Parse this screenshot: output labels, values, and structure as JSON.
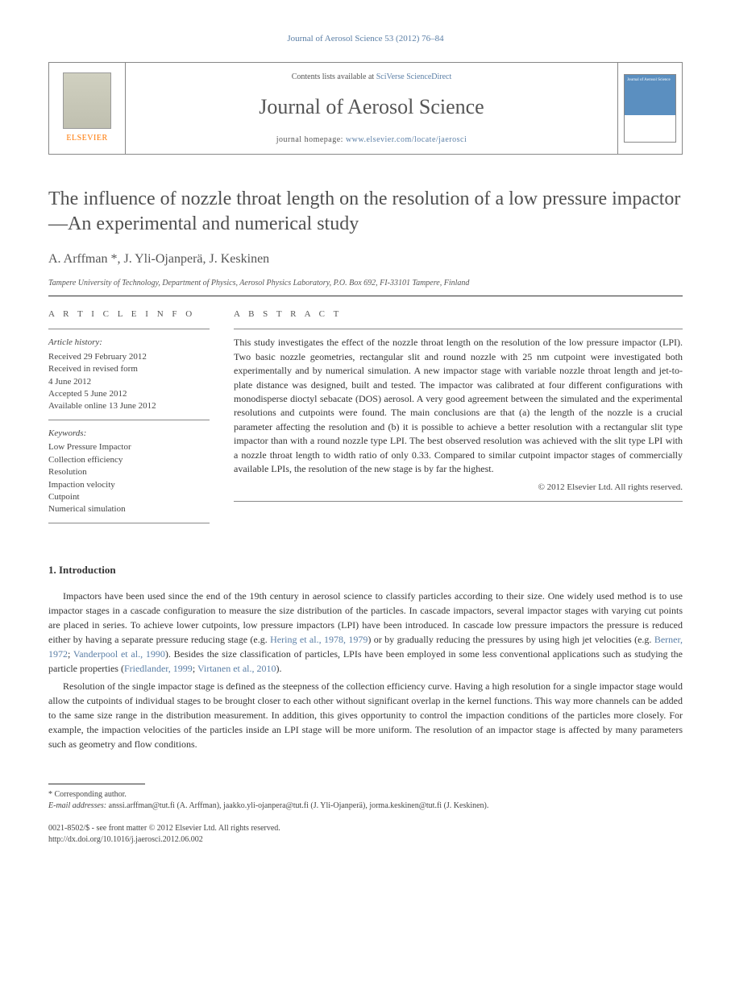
{
  "journal_ref": "Journal of Aerosol Science 53 (2012) 76–84",
  "header": {
    "publisher": "ELSEVIER",
    "contents_prefix": "Contents lists available at ",
    "contents_link": "SciVerse ScienceDirect",
    "journal_name": "Journal of Aerosol Science",
    "homepage_prefix": "journal homepage: ",
    "homepage_url": "www.elsevier.com/locate/jaerosci",
    "cover_text": "Journal of Aerosol Science"
  },
  "article": {
    "title": "The influence of nozzle throat length on the resolution of a low pressure impactor—An experimental and numerical study",
    "authors": "A. Arffman *, J. Yli-Ojanperä, J. Keskinen",
    "affiliation": "Tampere University of Technology, Department of Physics, Aerosol Physics Laboratory, P.O. Box 692, FI-33101 Tampere, Finland"
  },
  "info": {
    "section_label": "A R T I C L E   I N F O",
    "history_label": "Article history:",
    "history": [
      "Received 29 February 2012",
      "Received in revised form",
      "4 June 2012",
      "Accepted 5 June 2012",
      "Available online 13 June 2012"
    ],
    "keywords_label": "Keywords:",
    "keywords": [
      "Low Pressure Impactor",
      "Collection efficiency",
      "Resolution",
      "Impaction velocity",
      "Cutpoint",
      "Numerical simulation"
    ]
  },
  "abstract": {
    "section_label": "A B S T R A C T",
    "text": "This study investigates the effect of the nozzle throat length on the resolution of the low pressure impactor (LPI). Two basic nozzle geometries, rectangular slit and round nozzle with 25 nm cutpoint were investigated both experimentally and by numerical simulation. A new impactor stage with variable nozzle throat length and jet-to-plate distance was designed, built and tested. The impactor was calibrated at four different configurations with monodisperse dioctyl sebacate (DOS) aerosol. A very good agreement between the simulated and the experimental resolutions and cutpoints were found. The main conclusions are that (a) the length of the nozzle is a crucial parameter affecting the resolution and (b) it is possible to achieve a better resolution with a rectangular slit type impactor than with a round nozzle type LPI. The best observed resolution was achieved with the slit type LPI with a nozzle throat length to width ratio of only 0.33. Compared to similar cutpoint impactor stages of commercially available LPIs, the resolution of the new stage is by far the highest.",
    "copyright": "© 2012 Elsevier Ltd. All rights reserved."
  },
  "introduction": {
    "heading": "1. Introduction",
    "para1_pre": "Impactors have been used since the end of the 19th century in aerosol science to classify particles according to their size. One widely used method is to use impactor stages in a cascade configuration to measure the size distribution of the particles. In cascade impactors, several impactor stages with varying cut points are placed in series. To achieve lower cutpoints, low pressure impactors (LPI) have been introduced. In cascade low pressure impactors the pressure is reduced either by having a separate pressure reducing stage (e.g. ",
    "ref1": "Hering et al., 1978, 1979",
    "para1_mid1": ") or by gradually reducing the pressures by using high jet velocities (e.g. ",
    "ref2": "Berner, 1972",
    "para1_sep": "; ",
    "ref3": "Vanderpool et al., 1990",
    "para1_mid2": "). Besides the size classification of particles, LPIs have been employed in some less conventional applications such as studying the particle properties (",
    "ref4": "Friedlander, 1999",
    "ref5": "Virtanen et al., 2010",
    "para1_post": ").",
    "para2": "Resolution of the single impactor stage is defined as the steepness of the collection efficiency curve. Having a high resolution for a single impactor stage would allow the cutpoints of individual stages to be brought closer to each other without significant overlap in the kernel functions. This way more channels can be added to the same size range in the distribution measurement. In addition, this gives opportunity to control the impaction conditions of the particles more closely. For example, the impaction velocities of the particles inside an LPI stage will be more uniform. The resolution of an impactor stage is affected by many parameters such as geometry and flow conditions."
  },
  "footnotes": {
    "corr": "* Corresponding author.",
    "email_label": "E-mail addresses: ",
    "emails": "anssi.arffman@tut.fi (A. Arffman), jaakko.yli-ojanpera@tut.fi (J. Yli-Ojanperä), jorma.keskinen@tut.fi (J. Keskinen)."
  },
  "bottom": {
    "issn": "0021-8502/$ - see front matter © 2012 Elsevier Ltd. All rights reserved.",
    "doi": "http://dx.doi.org/10.1016/j.jaerosci.2012.06.002"
  }
}
